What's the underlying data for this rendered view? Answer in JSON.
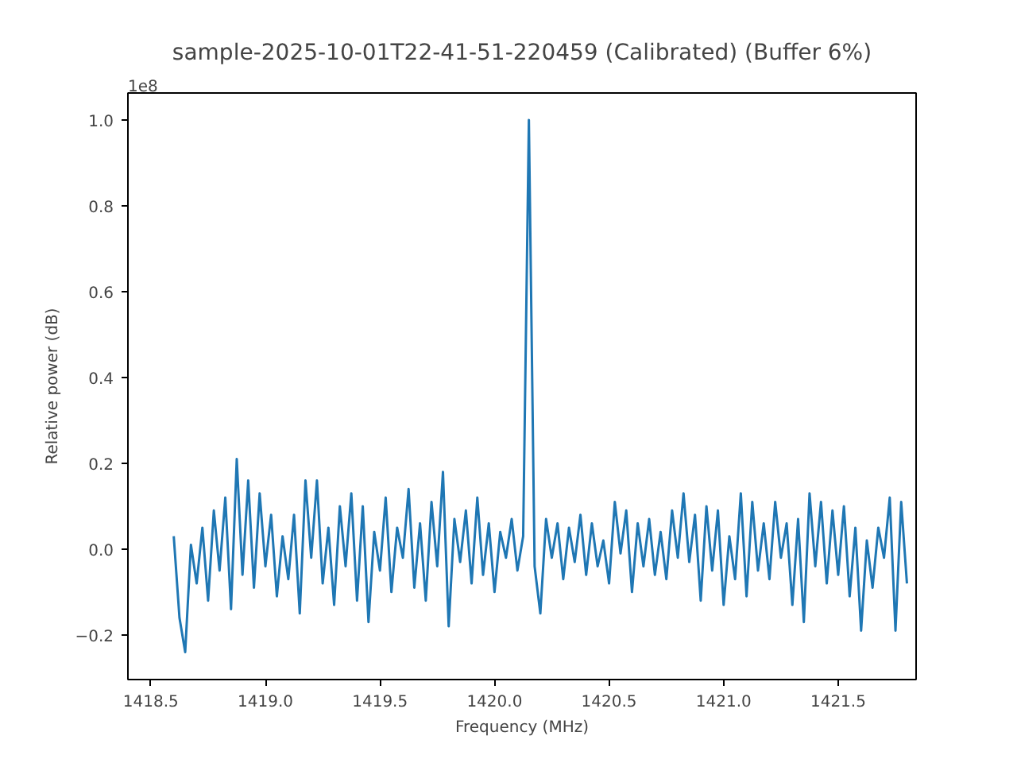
{
  "chart_data": {
    "type": "line",
    "title": "sample-2025-10-01T22-41-51-220459 (Calibrated) (Buffer 6%)",
    "xlabel": "Frequency (MHz)",
    "ylabel": "Relative power (dB)",
    "annotations": [
      "1e8"
    ],
    "xlim": [
      1418.4,
      1421.84
    ],
    "ylim": [
      -0.304,
      1.063
    ],
    "xticks": [
      {
        "value": 1418.5,
        "label": "1418.5"
      },
      {
        "value": 1419,
        "label": "1419.0"
      },
      {
        "value": 1419.5,
        "label": "1419.5"
      },
      {
        "value": 1420,
        "label": "1420.0"
      },
      {
        "value": 1420.5,
        "label": "1420.5"
      },
      {
        "value": 1421,
        "label": "1421.0"
      },
      {
        "value": 1421.5,
        "label": "1421.5"
      }
    ],
    "yticks": [
      {
        "value": -0.2,
        "label": "−0.2"
      },
      {
        "value": 0,
        "label": "0.0"
      },
      0.2,
      0.4,
      0.6,
      0.8,
      {
        "value": 1,
        "label": "1.0"
      }
    ],
    "grid": false,
    "line_style": "solid",
    "series": [
      {
        "color": "#1f77b4",
        "x": [
          1418.6,
          1418.625,
          1418.65,
          1418.675,
          1418.7,
          1418.725,
          1418.75,
          1418.775,
          1418.8,
          1418.825,
          1418.85,
          1418.875,
          1418.9,
          1418.925,
          1418.95,
          1418.975,
          1419.0,
          1419.025,
          1419.05,
          1419.075,
          1419.1,
          1419.125,
          1419.15,
          1419.175,
          1419.2,
          1419.225,
          1419.25,
          1419.275,
          1419.3,
          1419.325,
          1419.35,
          1419.375,
          1419.4,
          1419.425,
          1419.45,
          1419.475,
          1419.5,
          1419.525,
          1419.55,
          1419.575,
          1419.6,
          1419.625,
          1419.65,
          1419.675,
          1419.7,
          1419.725,
          1419.75,
          1419.775,
          1419.8,
          1419.825,
          1419.85,
          1419.875,
          1419.9,
          1419.925,
          1419.95,
          1419.975,
          1420.0,
          1420.025,
          1420.05,
          1420.075,
          1420.1,
          1420.125,
          1420.15,
          1420.175,
          1420.2,
          1420.225,
          1420.25,
          1420.275,
          1420.3,
          1420.325,
          1420.35,
          1420.375,
          1420.4,
          1420.425,
          1420.45,
          1420.475,
          1420.5,
          1420.525,
          1420.55,
          1420.575,
          1420.6,
          1420.625,
          1420.65,
          1420.675,
          1420.7,
          1420.725,
          1420.75,
          1420.775,
          1420.8,
          1420.825,
          1420.85,
          1420.875,
          1420.9,
          1420.925,
          1420.95,
          1420.975,
          1421.0,
          1421.025,
          1421.05,
          1421.075,
          1421.1,
          1421.125,
          1421.15,
          1421.175,
          1421.2,
          1421.225,
          1421.25,
          1421.275,
          1421.3,
          1421.325,
          1421.35,
          1421.375,
          1421.4,
          1421.425,
          1421.45,
          1421.475,
          1421.5,
          1421.525,
          1421.55,
          1421.575,
          1421.6,
          1421.625,
          1421.65,
          1421.675,
          1421.7,
          1421.725,
          1421.75,
          1421.775,
          1421.8
        ],
        "values": [
          0.03,
          -0.16,
          -0.24,
          0.01,
          -0.08,
          0.05,
          -0.12,
          0.09,
          -0.05,
          0.12,
          -0.14,
          0.21,
          -0.06,
          0.16,
          -0.09,
          0.13,
          -0.04,
          0.08,
          -0.11,
          0.03,
          -0.07,
          0.08,
          -0.15,
          0.16,
          -0.02,
          0.16,
          -0.08,
          0.05,
          -0.13,
          0.1,
          -0.04,
          0.13,
          -0.12,
          0.1,
          -0.17,
          0.04,
          -0.05,
          0.12,
          -0.1,
          0.05,
          -0.02,
          0.14,
          -0.09,
          0.06,
          -0.12,
          0.11,
          -0.04,
          0.18,
          -0.18,
          0.07,
          -0.03,
          0.09,
          -0.08,
          0.12,
          -0.06,
          0.06,
          -0.1,
          0.04,
          -0.02,
          0.07,
          -0.05,
          0.03,
          1.0,
          -0.04,
          -0.15,
          0.07,
          -0.02,
          0.06,
          -0.07,
          0.05,
          -0.03,
          0.08,
          -0.06,
          0.06,
          -0.04,
          0.02,
          -0.08,
          0.11,
          -0.01,
          0.09,
          -0.1,
          0.06,
          -0.04,
          0.07,
          -0.06,
          0.04,
          -0.07,
          0.09,
          -0.02,
          0.13,
          -0.03,
          0.08,
          -0.12,
          0.1,
          -0.05,
          0.09,
          -0.13,
          0.03,
          -0.07,
          0.13,
          -0.11,
          0.11,
          -0.05,
          0.06,
          -0.07,
          0.11,
          -0.02,
          0.06,
          -0.13,
          0.07,
          -0.17,
          0.13,
          -0.04,
          0.11,
          -0.08,
          0.09,
          -0.06,
          0.1,
          -0.11,
          0.05,
          -0.19,
          0.02,
          -0.09,
          0.05,
          -0.02,
          0.12,
          -0.19,
          0.11,
          -0.08
        ]
      }
    ]
  }
}
